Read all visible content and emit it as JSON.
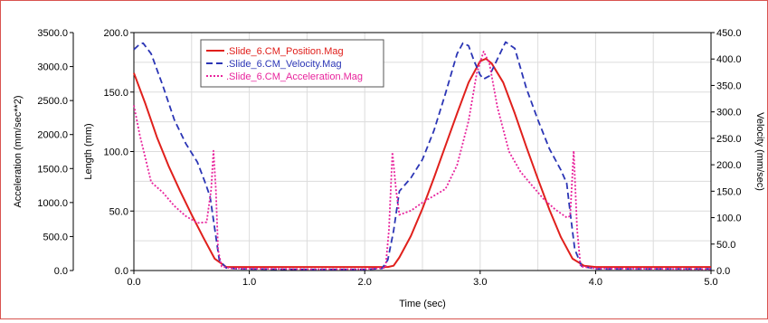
{
  "chart_data": {
    "type": "line",
    "xlabel": "Time (sec)",
    "xlim": [
      0,
      5
    ],
    "xticks": [
      "0.0",
      "1.0",
      "2.0",
      "3.0",
      "4.0",
      "5.0"
    ],
    "axes": {
      "acceleration": {
        "label": "Acceleration (mm/sec**2)",
        "lim": [
          0,
          3500
        ],
        "ticks": [
          "0.0",
          "500.0",
          "1000.0",
          "1500.0",
          "2000.0",
          "2500.0",
          "3000.0",
          "3500.0"
        ]
      },
      "length": {
        "label": "Length (mm)",
        "lim": [
          0,
          200
        ],
        "ticks": [
          "0.0",
          "50.0",
          "100.0",
          "150.0",
          "200.0"
        ]
      },
      "velocity": {
        "label": "Velocity (mm/sec)",
        "lim": [
          0,
          450
        ],
        "ticks": [
          "0.0",
          "50.0",
          "100.0",
          "150.0",
          "200.0",
          "250.0",
          "300.0",
          "350.0",
          "400.0",
          "450.0"
        ]
      }
    },
    "grid": true,
    "legend_position": "top-left",
    "series": [
      {
        "name": ".Slide_6.CM_Position.Mag",
        "axis": "length",
        "color": "#e0201c",
        "style": "solid",
        "points": [
          [
            0,
            166
          ],
          [
            0.1,
            140
          ],
          [
            0.2,
            112
          ],
          [
            0.3,
            88
          ],
          [
            0.4,
            67
          ],
          [
            0.5,
            47
          ],
          [
            0.6,
            28
          ],
          [
            0.7,
            10
          ],
          [
            0.8,
            3
          ],
          [
            0.9,
            3
          ],
          [
            2.2,
            3
          ],
          [
            2.25,
            4
          ],
          [
            2.3,
            11
          ],
          [
            2.4,
            29
          ],
          [
            2.5,
            52
          ],
          [
            2.6,
            78
          ],
          [
            2.7,
            105
          ],
          [
            2.8,
            132
          ],
          [
            2.9,
            158
          ],
          [
            3.0,
            176
          ],
          [
            3.05,
            178
          ],
          [
            3.1,
            174
          ],
          [
            3.2,
            158
          ],
          [
            3.3,
            132
          ],
          [
            3.4,
            104
          ],
          [
            3.5,
            77
          ],
          [
            3.6,
            51
          ],
          [
            3.7,
            28
          ],
          [
            3.8,
            10
          ],
          [
            3.9,
            4
          ],
          [
            4.0,
            3
          ],
          [
            5.0,
            3
          ]
        ]
      },
      {
        "name": ".Slide_6.CM_Velocity.Mag",
        "axis": "velocity",
        "color": "#2b35b5",
        "style": "dashed",
        "points": [
          [
            0,
            418
          ],
          [
            0.05,
            428
          ],
          [
            0.08,
            430
          ],
          [
            0.15,
            410
          ],
          [
            0.25,
            350
          ],
          [
            0.35,
            285
          ],
          [
            0.45,
            240
          ],
          [
            0.55,
            205
          ],
          [
            0.62,
            165
          ],
          [
            0.66,
            140
          ],
          [
            0.7,
            80
          ],
          [
            0.74,
            20
          ],
          [
            0.8,
            5
          ],
          [
            0.9,
            3
          ],
          [
            1.5,
            2
          ],
          [
            2.0,
            2
          ],
          [
            2.15,
            4
          ],
          [
            2.2,
            20
          ],
          [
            2.25,
            75
          ],
          [
            2.3,
            150
          ],
          [
            2.4,
            175
          ],
          [
            2.5,
            210
          ],
          [
            2.6,
            265
          ],
          [
            2.7,
            335
          ],
          [
            2.8,
            410
          ],
          [
            2.85,
            430
          ],
          [
            2.9,
            425
          ],
          [
            2.95,
            395
          ],
          [
            3.0,
            370
          ],
          [
            3.03,
            362
          ],
          [
            3.08,
            368
          ],
          [
            3.15,
            400
          ],
          [
            3.22,
            432
          ],
          [
            3.3,
            420
          ],
          [
            3.4,
            345
          ],
          [
            3.5,
            285
          ],
          [
            3.6,
            230
          ],
          [
            3.7,
            190
          ],
          [
            3.75,
            165
          ],
          [
            3.78,
            110
          ],
          [
            3.82,
            40
          ],
          [
            3.88,
            8
          ],
          [
            4.0,
            3
          ],
          [
            5.0,
            3
          ]
        ]
      },
      {
        "name": ".Slide_6.CM_Acceleration.Mag",
        "axis": "acceleration",
        "color": "#e8239c",
        "style": "dotted",
        "points": [
          [
            0,
            2430
          ],
          [
            0.05,
            2000
          ],
          [
            0.1,
            1650
          ],
          [
            0.15,
            1300
          ],
          [
            0.25,
            1150
          ],
          [
            0.35,
            950
          ],
          [
            0.45,
            800
          ],
          [
            0.55,
            700
          ],
          [
            0.63,
            710
          ],
          [
            0.67,
            1200
          ],
          [
            0.69,
            1760
          ],
          [
            0.71,
            1200
          ],
          [
            0.73,
            300
          ],
          [
            0.76,
            60
          ],
          [
            0.85,
            30
          ],
          [
            1.5,
            20
          ],
          [
            2.0,
            20
          ],
          [
            2.18,
            40
          ],
          [
            2.21,
            600
          ],
          [
            2.24,
            1740
          ],
          [
            2.27,
            1200
          ],
          [
            2.3,
            820
          ],
          [
            2.4,
            880
          ],
          [
            2.5,
            1000
          ],
          [
            2.6,
            1100
          ],
          [
            2.7,
            1200
          ],
          [
            2.8,
            1550
          ],
          [
            2.9,
            2200
          ],
          [
            2.97,
            2900
          ],
          [
            3.03,
            3220
          ],
          [
            3.08,
            3050
          ],
          [
            3.15,
            2400
          ],
          [
            3.25,
            1750
          ],
          [
            3.35,
            1450
          ],
          [
            3.45,
            1250
          ],
          [
            3.55,
            1050
          ],
          [
            3.65,
            900
          ],
          [
            3.75,
            780
          ],
          [
            3.78,
            800
          ],
          [
            3.81,
            1760
          ],
          [
            3.84,
            600
          ],
          [
            3.87,
            60
          ],
          [
            4.0,
            30
          ],
          [
            5.0,
            20
          ]
        ]
      }
    ]
  }
}
